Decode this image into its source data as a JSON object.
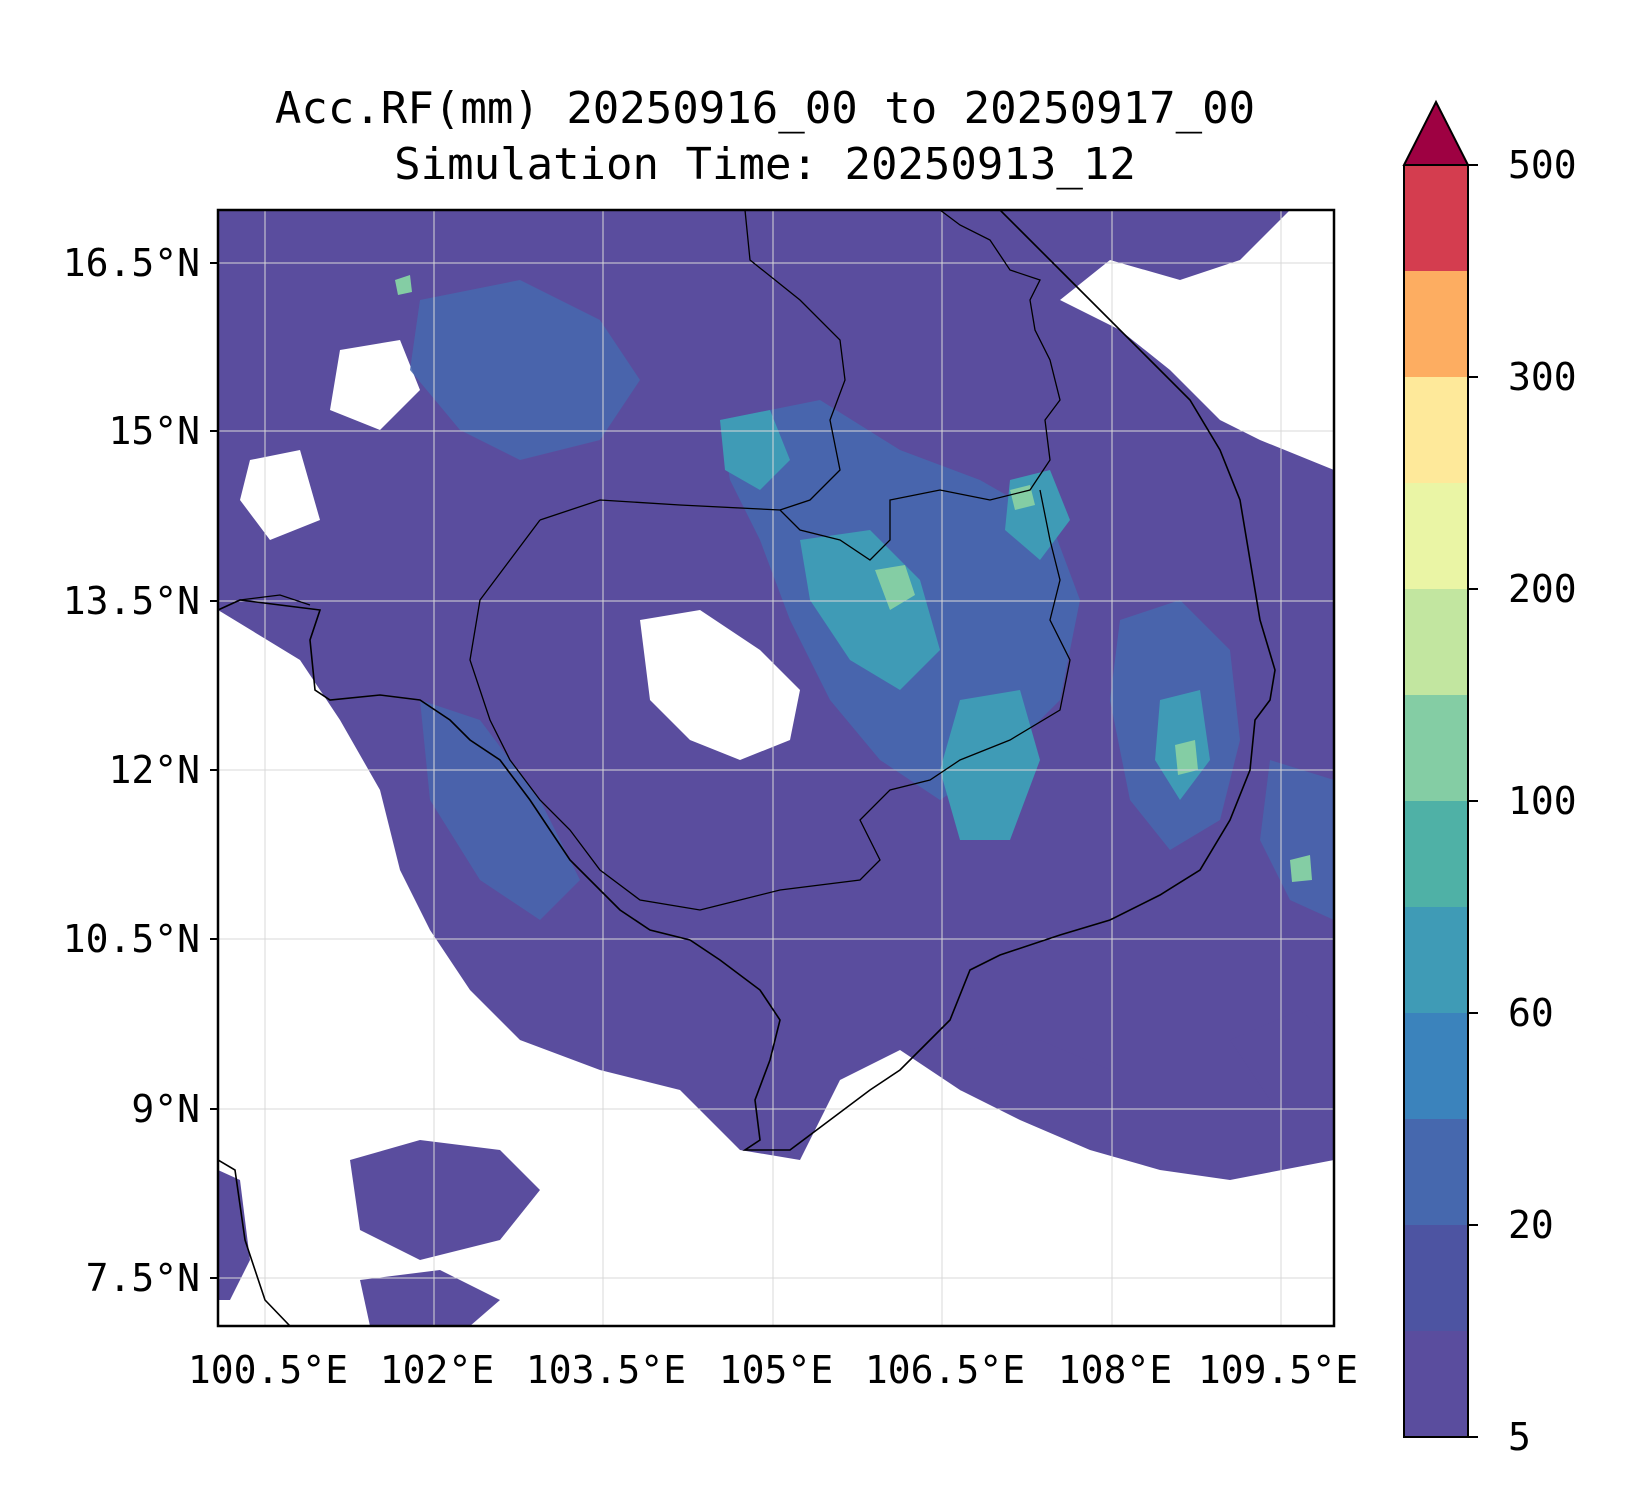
{
  "title": {
    "line1": "Acc.RF(mm) 20250916_00 to 20250917_00",
    "line2": "Simulation Time: 20250913_12"
  },
  "map": {
    "lat_labels": [
      "16.5°N",
      "15°N",
      "13.5°N",
      "12°N",
      "10.5°N",
      "9°N",
      "7.5°N"
    ],
    "lon_labels": [
      "100.5°E",
      "102°E",
      "103.5°E",
      "105°E",
      "106.5°E",
      "108°E",
      "109.5°E"
    ],
    "lat_range": [
      7.0,
      17.0
    ],
    "lon_range": [
      100.0,
      110.0
    ],
    "grid": true
  },
  "colorbar": {
    "tick_labels": [
      "500",
      "300",
      "200",
      "100",
      "60",
      "20",
      "5"
    ],
    "extend": "max",
    "colors_bottom_to_top": [
      "#5a4d9e",
      "#4d54a2",
      "#4668ae",
      "#3b83bc",
      "#3f9bb6",
      "#4fb1a6",
      "#84cda4",
      "#c2e6a0",
      "#eaf5a5",
      "#fee99a",
      "#fdad61",
      "#d43d4f",
      "#9e0142"
    ]
  },
  "colors": {
    "rain_low": "#5a4d9e",
    "rain_mid": "#3f9bb6",
    "rain_high": "#84cda4",
    "no_rain": "#ffffff"
  }
}
